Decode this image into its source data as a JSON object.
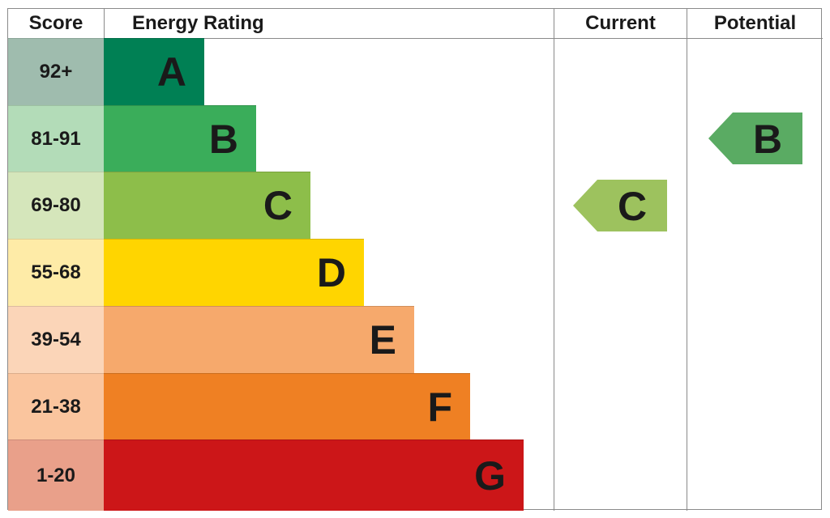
{
  "headers": {
    "score": "Score",
    "rating": "Energy Rating",
    "current": "Current",
    "potential": "Potential"
  },
  "chart_data": {
    "type": "table",
    "bands": [
      {
        "score": "92+",
        "letter": "A",
        "color": "#008054",
        "score_color": "#9fbcae"
      },
      {
        "score": "81-91",
        "letter": "B",
        "color": "#3aad5a",
        "score_color": "#b3dcb8"
      },
      {
        "score": "69-80",
        "letter": "C",
        "color": "#8dbe4a",
        "score_color": "#d5e6bb"
      },
      {
        "score": "55-68",
        "letter": "D",
        "color": "#ffd500",
        "score_color": "#feeba7"
      },
      {
        "score": "39-54",
        "letter": "E",
        "color": "#f6a96c",
        "score_color": "#fbd5b8"
      },
      {
        "score": "21-38",
        "letter": "F",
        "color": "#ef8023",
        "score_color": "#fac59e"
      },
      {
        "score": "1-20",
        "letter": "G",
        "color": "#cc1618",
        "score_color": "#e9a08a"
      }
    ],
    "current": {
      "letter": "C",
      "color": "#9dc25e"
    },
    "potential": {
      "letter": "B",
      "color": "#5aab63"
    }
  }
}
